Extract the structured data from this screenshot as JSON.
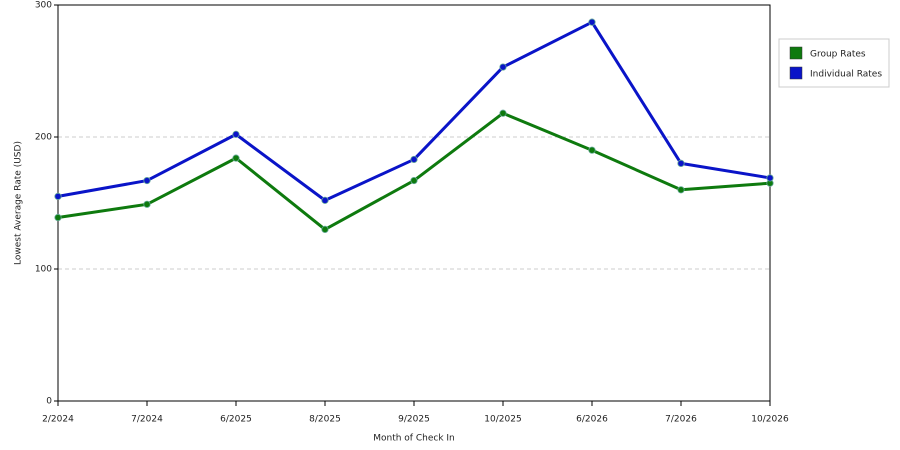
{
  "chart_data": {
    "type": "line",
    "x_label": "Month of Check In",
    "y_label": "Lowest Average Rate (USD)",
    "categories": [
      "2/2024",
      "7/2024",
      "6/2025",
      "8/2025",
      "9/2025",
      "10/2025",
      "6/2026",
      "7/2026",
      "10/2026"
    ],
    "series": [
      {
        "name": "Group Rates",
        "color": "#0e7a0e",
        "values": [
          139,
          149,
          184,
          130,
          167,
          218,
          190,
          160,
          165
        ]
      },
      {
        "name": "Individual Rates",
        "color": "#0a14c8",
        "values": [
          155,
          167,
          202,
          152,
          183,
          253,
          287,
          180,
          169
        ]
      }
    ],
    "ylim": [
      0,
      300
    ],
    "yticks": [
      0,
      100,
      200,
      300
    ],
    "grid": true,
    "legend": "right"
  }
}
